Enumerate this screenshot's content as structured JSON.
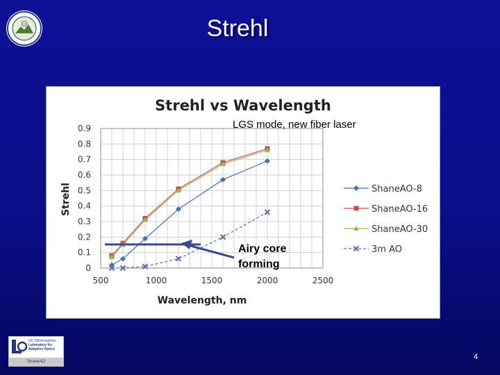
{
  "slide": {
    "title": "Strehl",
    "page_number": "4"
  },
  "logo": {
    "lines": [
      "UC Observatories",
      "Laboratory for",
      "Adaptive Optics"
    ],
    "footer": "ShaneAO"
  },
  "annotations": {
    "lgs_mode": "LGS mode, new fiber laser",
    "airy_core": "Airy core forming"
  },
  "chart_data": {
    "type": "line",
    "title": "Strehl vs Wavelength",
    "xlabel": "Wavelength, nm",
    "ylabel": "Strehl",
    "xlim": [
      500,
      2500
    ],
    "ylim": [
      0,
      0.9
    ],
    "xticks": [
      500,
      1000,
      1500,
      2000,
      2500
    ],
    "yticks": [
      0,
      0.1,
      0.2,
      0.3,
      0.4,
      0.5,
      0.6,
      0.7,
      0.8,
      0.9
    ],
    "grid": true,
    "legend": "right",
    "series": [
      {
        "name": "ShaneAO-8",
        "color": "#4a6fb0",
        "marker": "diamond",
        "dash": "",
        "x": [
          600,
          700,
          900,
          1200,
          1600,
          2000
        ],
        "y": [
          0.02,
          0.06,
          0.19,
          0.38,
          0.57,
          0.69
        ]
      },
      {
        "name": "ShaneAO-16",
        "color": "#c0504d",
        "marker": "square",
        "dash": "",
        "x": [
          600,
          700,
          900,
          1200,
          1600,
          2000
        ],
        "y": [
          0.08,
          0.16,
          0.32,
          0.51,
          0.68,
          0.77
        ]
      },
      {
        "name": "ShaneAO-30",
        "color": "#9bbb59",
        "marker": "triangle",
        "dash": "",
        "x": [
          600,
          700,
          900,
          1200,
          1600,
          2000
        ],
        "y": [
          0.07,
          0.15,
          0.31,
          0.5,
          0.67,
          0.76
        ]
      },
      {
        "name": "3m AO",
        "color": "#5a6fa8",
        "marker": "x",
        "dash": "4,3",
        "x": [
          600,
          700,
          900,
          1200,
          1600,
          2000
        ],
        "y": [
          0.0,
          0.0,
          0.01,
          0.06,
          0.2,
          0.36
        ]
      }
    ]
  }
}
